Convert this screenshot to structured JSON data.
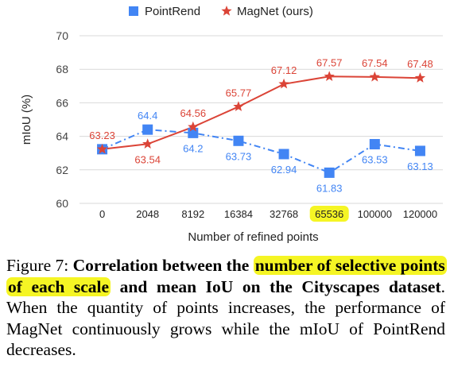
{
  "chart_data": {
    "type": "line",
    "categories": [
      "0",
      "2048",
      "8192",
      "16384",
      "32768",
      "65536",
      "100000",
      "120000"
    ],
    "highlighted_category": "65536",
    "series": [
      {
        "name": "PointRend",
        "values": [
          63.23,
          64.4,
          64.2,
          63.73,
          62.94,
          61.83,
          63.53,
          63.13
        ],
        "color": "#4285f4",
        "marker": "square",
        "line_style": "dash-dot"
      },
      {
        "name": "MagNet (ours)",
        "values": [
          63.23,
          63.54,
          64.56,
          65.77,
          67.12,
          67.57,
          67.54,
          67.48
        ],
        "color": "#db4437",
        "marker": "star",
        "line_style": "solid"
      }
    ],
    "data_labels": [
      {
        "series": 1,
        "index": 0,
        "text": "63.23"
      },
      {
        "series": 0,
        "index": 1,
        "text": "64.4"
      },
      {
        "series": 1,
        "index": 1,
        "text": "63.54"
      },
      {
        "series": 0,
        "index": 2,
        "text": "64.2"
      },
      {
        "series": 1,
        "index": 2,
        "text": "64.56"
      },
      {
        "series": 0,
        "index": 3,
        "text": "63.73"
      },
      {
        "series": 1,
        "index": 3,
        "text": "65.77"
      },
      {
        "series": 0,
        "index": 4,
        "text": "62.94"
      },
      {
        "series": 1,
        "index": 4,
        "text": "67.12"
      },
      {
        "series": 0,
        "index": 5,
        "text": "61.83"
      },
      {
        "series": 1,
        "index": 5,
        "text": "67.57"
      },
      {
        "series": 0,
        "index": 6,
        "text": "63.53"
      },
      {
        "series": 1,
        "index": 6,
        "text": "67.54"
      },
      {
        "series": 0,
        "index": 7,
        "text": "63.13"
      },
      {
        "series": 1,
        "index": 7,
        "text": "67.48"
      }
    ],
    "xlabel": "Number of refined points",
    "ylabel": "mIoU (%)",
    "ylim": [
      60,
      70
    ],
    "yticks": [
      "60",
      "62",
      "64",
      "66",
      "68",
      "70"
    ],
    "grid": true,
    "legend_position": "top"
  },
  "caption": {
    "figure_label": "Figure 7:",
    "bold_1": "Correlation between the",
    "bold_highlighted": "number of selective points of each scale",
    "bold_2": "and mean IoU on the Cityscapes dataset",
    "body": ". When the quantity of points increases, the performance of MagNet continuously grows while the mIoU of PointRend decreases."
  }
}
